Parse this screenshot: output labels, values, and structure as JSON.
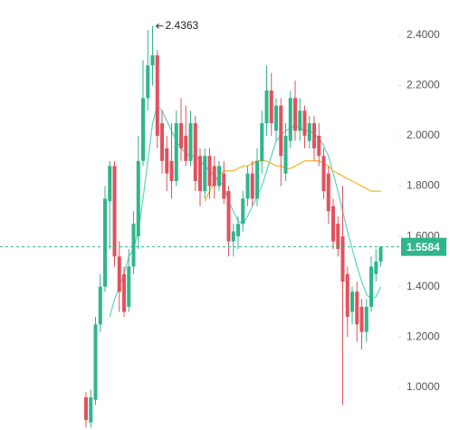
{
  "chart_data": {
    "type": "candlestick",
    "up_color": "#2fb58c",
    "down_color": "#e0525d",
    "open": [
      0.96,
      0.86,
      0.95,
      1.25,
      1.4,
      1.74,
      1.88,
      1.52,
      1.45,
      1.32,
      1.48,
      1.6,
      1.9,
      2.15,
      2.28,
      2.32,
      2.05,
      1.95,
      1.9,
      1.82,
      2.05,
      2.0,
      1.9,
      2.05,
      1.92,
      1.78,
      1.92,
      1.88,
      1.8,
      1.85,
      1.78,
      1.58,
      1.6,
      1.65,
      1.75,
      1.85,
      1.75,
      1.9,
      2.05,
      2.18,
      2.02,
      2.12,
      1.85,
      1.98,
      2.15,
      2.02,
      2.1,
      1.98,
      2.05,
      2.0,
      1.92,
      1.85,
      1.72,
      1.65,
      1.6,
      1.45,
      1.3,
      1.38,
      1.32,
      1.22,
      1.32,
      1.45,
      1.5
    ],
    "high": [
      0.98,
      0.99,
      1.28,
      1.45,
      1.8,
      1.9,
      1.9,
      1.58,
      1.48,
      1.55,
      1.7,
      2.0,
      2.3,
      2.42,
      2.4363,
      2.34,
      2.1,
      2.0,
      2.05,
      2.1,
      2.15,
      2.12,
      2.1,
      2.08,
      1.95,
      1.95,
      1.95,
      1.92,
      1.9,
      1.9,
      1.8,
      1.65,
      1.68,
      1.78,
      1.88,
      1.9,
      1.95,
      2.1,
      2.28,
      2.25,
      2.15,
      2.15,
      2.05,
      2.18,
      2.22,
      2.15,
      2.12,
      2.08,
      2.08,
      2.05,
      1.95,
      1.88,
      1.75,
      1.68,
      1.8,
      1.48,
      1.4,
      1.42,
      1.35,
      1.35,
      1.52,
      1.55,
      1.56
    ],
    "low": [
      0.84,
      0.84,
      0.93,
      1.22,
      1.38,
      1.55,
      1.48,
      1.3,
      1.28,
      1.3,
      1.45,
      1.55,
      1.88,
      2.1,
      2.2,
      1.95,
      1.85,
      1.78,
      1.75,
      1.8,
      1.9,
      1.88,
      1.88,
      1.78,
      1.72,
      1.75,
      1.75,
      1.75,
      1.78,
      1.73,
      1.52,
      1.52,
      1.55,
      1.62,
      1.72,
      1.72,
      1.72,
      1.85,
      2.0,
      2.0,
      1.98,
      1.8,
      1.82,
      1.95,
      1.98,
      1.98,
      1.95,
      1.95,
      1.9,
      1.88,
      1.75,
      1.65,
      1.55,
      1.52,
      0.93,
      1.2,
      1.25,
      1.18,
      1.15,
      1.18,
      1.3,
      1.42,
      1.48
    ],
    "close": [
      0.87,
      0.96,
      1.25,
      1.4,
      1.75,
      1.88,
      1.52,
      1.38,
      1.3,
      1.48,
      1.65,
      1.9,
      2.15,
      2.28,
      2.32,
      2.0,
      1.9,
      1.85,
      1.82,
      2.05,
      1.95,
      1.9,
      2.05,
      1.82,
      1.78,
      1.92,
      1.8,
      1.8,
      1.88,
      1.75,
      1.58,
      1.62,
      1.65,
      1.75,
      1.85,
      1.75,
      1.9,
      2.05,
      2.18,
      2.05,
      2.12,
      1.92,
      2.0,
      2.15,
      2.02,
      2.1,
      2.0,
      2.05,
      1.95,
      1.92,
      1.78,
      1.7,
      1.58,
      1.55,
      1.42,
      1.28,
      1.38,
      1.25,
      1.22,
      1.32,
      1.48,
      1.5,
      1.5584
    ],
    "series": [
      {
        "color": "#5fd1c0",
        "values": [
          null,
          null,
          null,
          null,
          null,
          1.28,
          1.35,
          1.4,
          1.45,
          1.52,
          1.55,
          1.62,
          1.75,
          1.9,
          2.05,
          2.12,
          2.1,
          2.06,
          2.02,
          1.98,
          1.95,
          1.93,
          1.92,
          1.92,
          1.9,
          1.88,
          1.86,
          1.84,
          1.82,
          1.8,
          1.74,
          1.7,
          1.66,
          1.65,
          1.68,
          1.72,
          1.76,
          1.8,
          1.86,
          1.92,
          1.98,
          2.0,
          2.02,
          2.03,
          2.04,
          2.03,
          2.02,
          2.02,
          2.01,
          1.99,
          1.96,
          1.92,
          1.85,
          1.78,
          1.7,
          1.62,
          1.55,
          1.48,
          1.42,
          1.37,
          1.35,
          1.36,
          1.4
        ]
      },
      {
        "color": "#f0b429",
        "values": [
          null,
          null,
          null,
          null,
          null,
          null,
          null,
          null,
          null,
          null,
          null,
          null,
          null,
          null,
          null,
          null,
          null,
          null,
          null,
          null,
          null,
          null,
          null,
          null,
          null,
          1.74,
          1.78,
          1.82,
          1.84,
          1.86,
          1.86,
          1.86,
          1.87,
          1.88,
          1.88,
          1.89,
          1.9,
          1.9,
          1.9,
          1.89,
          1.88,
          1.88,
          1.87,
          1.87,
          1.88,
          1.89,
          1.9,
          1.9,
          1.9,
          1.9,
          1.89,
          1.88,
          1.86,
          1.85,
          1.84,
          1.83,
          1.82,
          1.81,
          1.8,
          1.79,
          1.78,
          1.78,
          1.78
        ]
      }
    ],
    "ylim": [
      0.83,
      2.54
    ],
    "yticks": [
      {
        "value": 1.0,
        "label": "1.0000"
      },
      {
        "value": 1.2,
        "label": "1.2000"
      },
      {
        "value": 1.4,
        "label": "1.4000"
      },
      {
        "value": 1.6,
        "label": "1.6000"
      },
      {
        "value": 1.8,
        "label": "1.8000"
      },
      {
        "value": 2.0,
        "label": "2.0000"
      },
      {
        "value": 2.2,
        "label": "2.2000"
      },
      {
        "value": 2.4,
        "label": "2.4000"
      }
    ]
  }
}
